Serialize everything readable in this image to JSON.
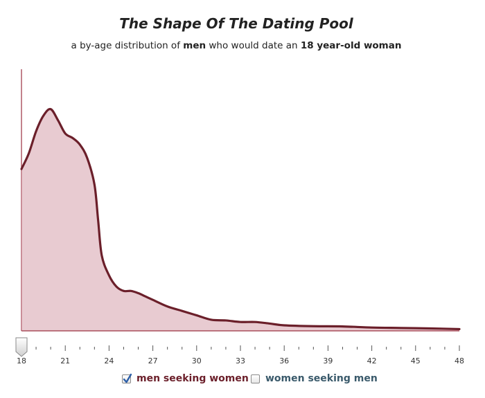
{
  "header": {
    "title": "The Shape Of The Dating Pool",
    "subtitle_parts": [
      "a by-age distribution of ",
      "men",
      " who would date an ",
      "18 year-old woman"
    ]
  },
  "chart_data": {
    "type": "area",
    "title": "The Shape Of The Dating Pool",
    "subtitle": "a by-age distribution of men who would date an 18 year-old woman",
    "xlabel": "",
    "ylabel": "",
    "xlim": [
      18,
      48
    ],
    "x_ticks": [
      "18",
      "21",
      "24",
      "27",
      "30",
      "33",
      "36",
      "39",
      "42",
      "45",
      "48"
    ],
    "grid": false,
    "series": [
      {
        "name": "men seeking women",
        "color": "#6b1f2a",
        "fill": "#d8a9b2",
        "x": [
          18,
          18.5,
          19,
          19.5,
          20,
          20.5,
          21,
          21.5,
          22,
          22.5,
          23,
          23.25,
          23.5,
          24,
          24.5,
          25,
          25.5,
          26,
          26.5,
          27,
          28,
          29,
          30,
          31,
          32,
          33,
          34,
          35,
          36,
          38,
          40,
          42,
          44,
          46,
          48
        ],
        "values": [
          73,
          80,
          90,
          97,
          100,
          95,
          89,
          87,
          84,
          78,
          66,
          50,
          34,
          25,
          20,
          18,
          18,
          17,
          15.5,
          14,
          11,
          9,
          7,
          5,
          4.7,
          4,
          4,
          3.3,
          2.5,
          2.1,
          2,
          1.5,
          1.3,
          1.1,
          0.8
        ]
      }
    ],
    "slider_value": 18
  },
  "legend": {
    "items": [
      {
        "label": "men seeking women",
        "checked": true,
        "color": "#6b1f2a"
      },
      {
        "label": "women seeking men",
        "checked": false,
        "color": "#3a5a6b"
      }
    ]
  },
  "colors": {
    "line": "#6b1f2a",
    "fill": "#d8a9b2",
    "axis": "#9b3040"
  },
  "icons": {
    "slider_handle": "slider-handle-icon",
    "checked": "checkmark-icon"
  }
}
